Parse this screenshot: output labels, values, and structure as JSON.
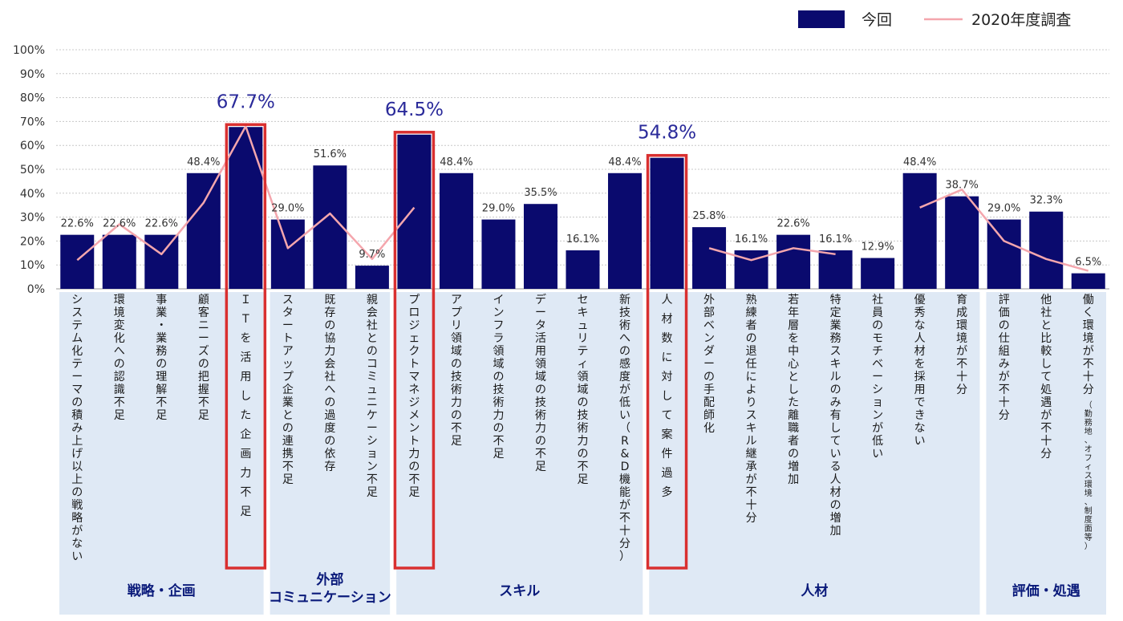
{
  "chart_data": {
    "type": "bar",
    "ylim": [
      0,
      100
    ],
    "y_ticks": [
      "0%",
      "10%",
      "20%",
      "30%",
      "40%",
      "50%",
      "60%",
      "70%",
      "80%",
      "90%",
      "100%"
    ],
    "grid": true,
    "legend_position": "top-right",
    "categories": [
      "システム化テーマの積み上げ以上の戦略がない",
      "環境変化への認識不足",
      "事業・業務の理解不足",
      "顧客ニーズの把握不足",
      "ＩＴを活用した企画力不足",
      "スタートアップ企業との連携不足",
      "既存の協力会社への過度の依存",
      "親会社とのコミュニケーション不足",
      "プロジェクトマネジメント力の不足",
      "アプリ領域の技術力の不足",
      "インフラ領域の技術力の不足",
      "データ活用領域の技術力の不足",
      "セキュリティ領域の技術力の不足",
      "新技術への感度が低い（R&D機能が不十分）",
      "人材数に対して案件過多",
      "外部ベンダーの手配師化",
      "熟練者の退任によりスキル継承が不十分",
      "若年層を中心とした離職者の増加",
      "特定業務スキルのみ有している人材の増加",
      "社員のモチベーションが低い",
      "優秀な人材を採用できない",
      "育成環境が不十分",
      "評価の仕組みが不十分",
      "他社と比較して処遇が不十分",
      "働く環境が不十分"
    ],
    "category_note_last": "（勤務地、オフィス環境、制度面等）",
    "series": [
      {
        "name": "今回",
        "color": "#0a0a6e",
        "values": [
          22.6,
          22.6,
          22.6,
          48.4,
          67.7,
          29.0,
          51.6,
          9.7,
          64.5,
          48.4,
          29.0,
          35.5,
          16.1,
          48.4,
          54.8,
          25.8,
          16.1,
          22.6,
          16.1,
          12.9,
          48.4,
          38.7,
          29.0,
          32.3,
          6.5
        ],
        "labels": [
          "22.6%",
          "22.6%",
          "22.6%",
          "48.4%",
          "67.7%",
          "29.0%",
          "51.6%",
          "9.7%",
          "64.5%",
          "48.4%",
          "29.0%",
          "35.5%",
          "16.1%",
          "48.4%",
          "54.8%",
          "25.8%",
          "16.1%",
          "22.6%",
          "16.1%",
          "12.9%",
          "48.4%",
          "38.7%",
          "29.0%",
          "32.3%",
          "6.5%"
        ]
      },
      {
        "name": "2020年度調査",
        "color": "#f4a6ad",
        "values": [
          12,
          27,
          14.5,
          36,
          68,
          17,
          31.5,
          12.5,
          34,
          null,
          null,
          null,
          null,
          null,
          null,
          17,
          12,
          17,
          14.5,
          null,
          34,
          41.5,
          20,
          12.5,
          7.5
        ]
      }
    ],
    "highlighted": [
      4,
      8,
      14
    ],
    "groups": [
      {
        "label": "戦略・企画",
        "from": 0,
        "to": 4
      },
      {
        "label": "外部\nコミュニケーション",
        "from": 5,
        "to": 7
      },
      {
        "label": "スキル",
        "from": 8,
        "to": 13
      },
      {
        "label": "人材",
        "from": 14,
        "to": 21
      },
      {
        "label": "評価・処遇",
        "from": 22,
        "to": 24
      }
    ]
  }
}
